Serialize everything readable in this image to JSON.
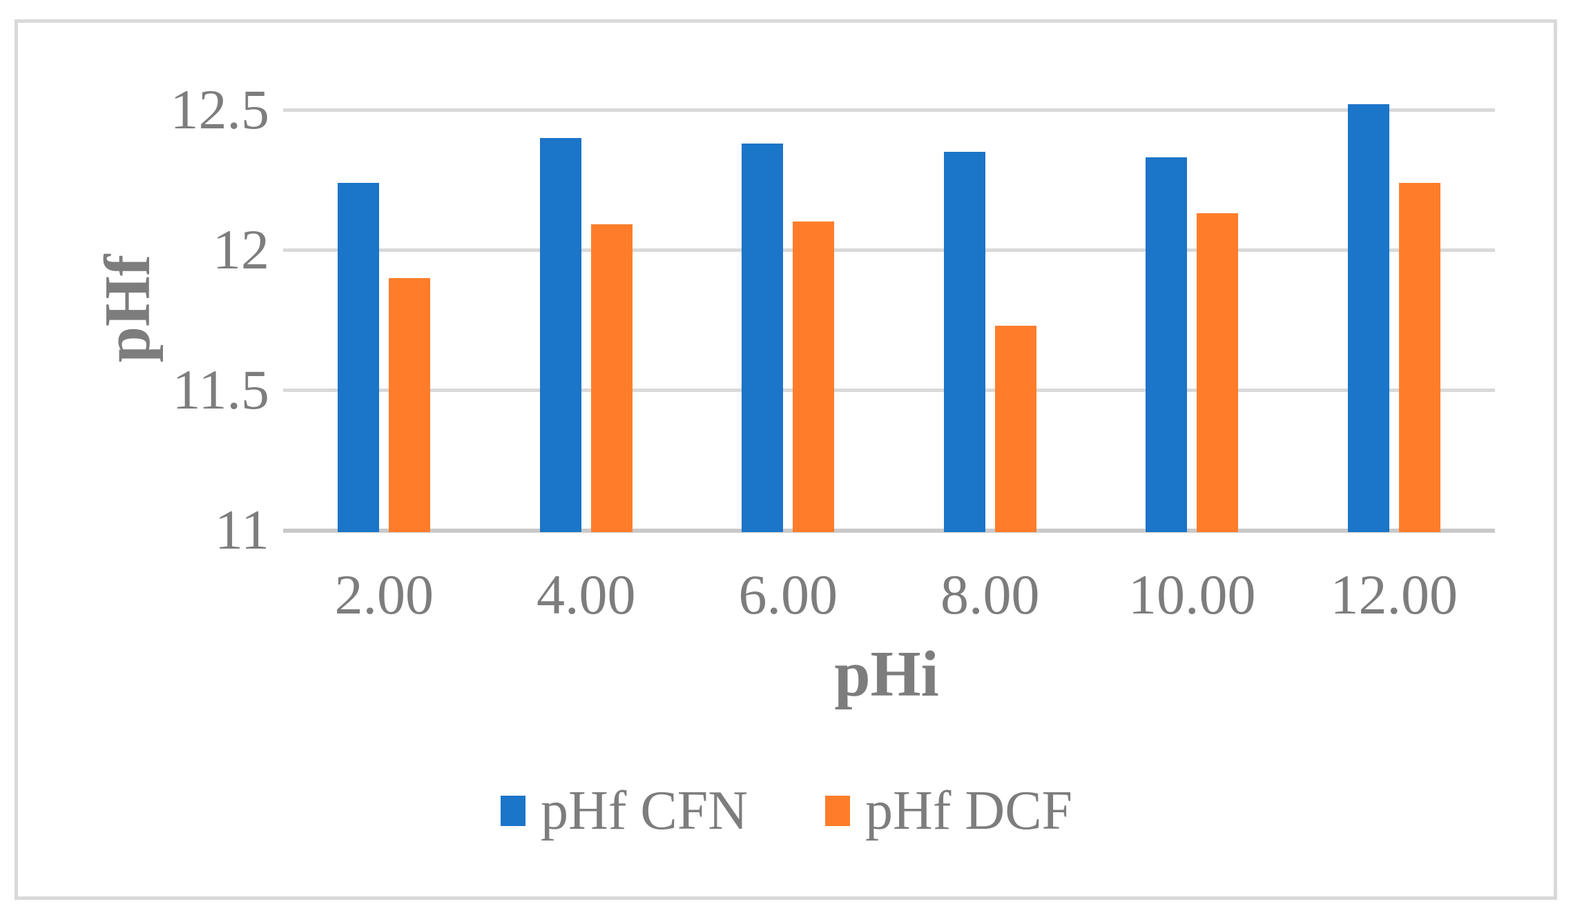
{
  "figure": {
    "background": "#ffffff",
    "frame_border_color": "#d9d9d9"
  },
  "chart_data": {
    "type": "bar",
    "title": "",
    "xlabel": "pHi",
    "ylabel": "pHf",
    "categories": [
      "2.00",
      "4.00",
      "6.00",
      "8.00",
      "10.00",
      "12.00"
    ],
    "series": [
      {
        "name": "pHf CFN",
        "color": "#1b75c8",
        "values": [
          12.24,
          12.4,
          12.38,
          12.35,
          12.33,
          12.52
        ]
      },
      {
        "name": "pHf DCF",
        "color": "#ff7d2a",
        "values": [
          11.9,
          12.09,
          12.1,
          11.73,
          12.13,
          12.24
        ]
      }
    ],
    "ylim": [
      11,
      12.6
    ],
    "y_ticks": [
      {
        "value": 11,
        "label": "11"
      },
      {
        "value": 11.5,
        "label": "11.5"
      },
      {
        "value": 12,
        "label": "12"
      },
      {
        "value": 12.5,
        "label": "12.5"
      }
    ],
    "grid": true,
    "gridline_color": "#d9d9d9",
    "axis_line_color": "#c9c9c9",
    "text_color": "#7d7d7d",
    "legend_position": "bottom"
  }
}
